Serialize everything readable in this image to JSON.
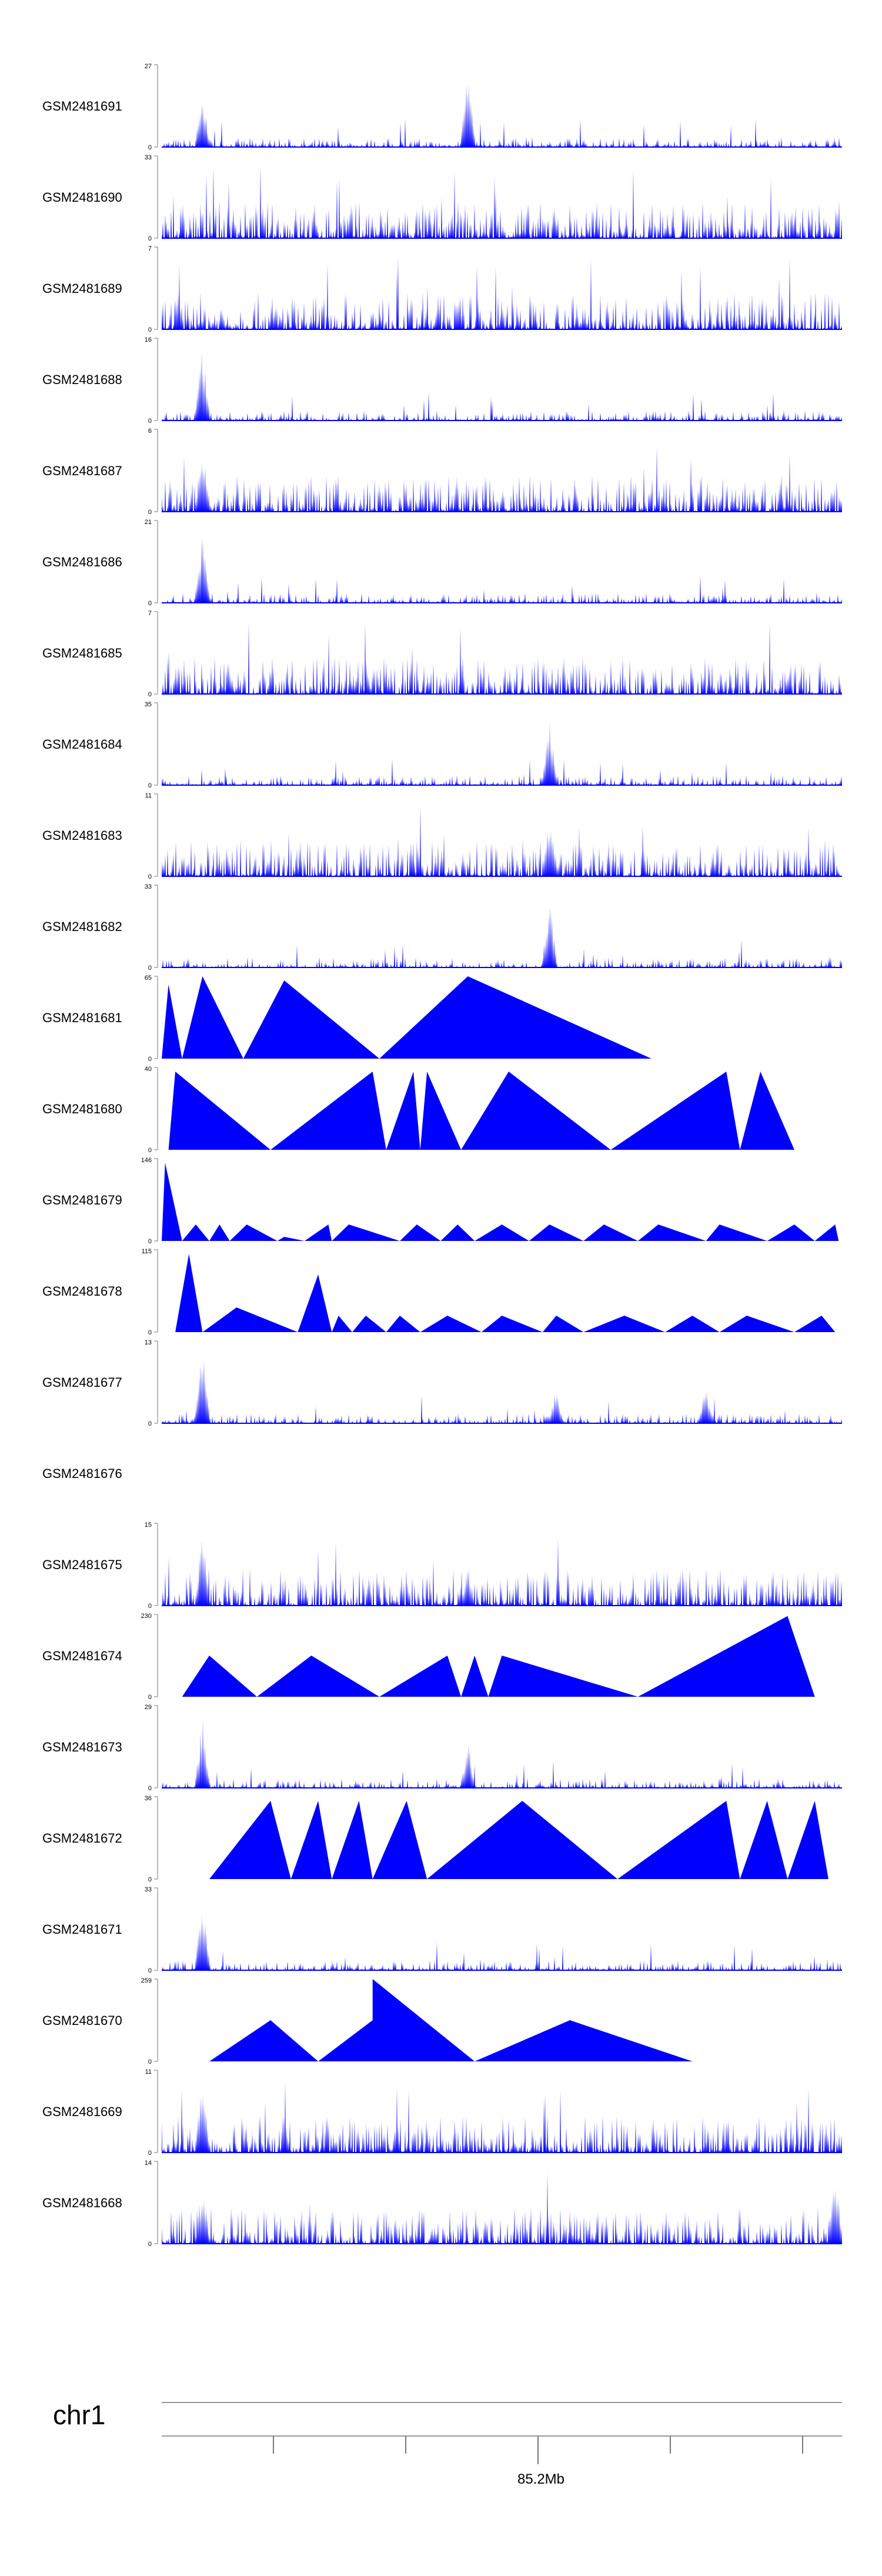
{
  "chart_data": {
    "type": "area",
    "title": "",
    "chromosome": "chr1",
    "x_axis": {
      "tick_label": "85.2Mb",
      "tick_count": 5
    },
    "tracks": [
      {
        "name": "GSM2481691",
        "ymax": "27",
        "style": "spiky",
        "peaks": [
          [
            0.06,
            0.7
          ],
          [
            0.45,
            0.95
          ]
        ]
      },
      {
        "name": "GSM2481690",
        "ymax": "33",
        "style": "dense"
      },
      {
        "name": "GSM2481689",
        "ymax": "7",
        "style": "dense"
      },
      {
        "name": "GSM2481688",
        "ymax": "16",
        "style": "spiky",
        "peaks": [
          [
            0.06,
            0.95
          ]
        ]
      },
      {
        "name": "GSM2481687",
        "ymax": "6",
        "style": "dense",
        "peaks": [
          [
            0.06,
            0.9
          ]
        ]
      },
      {
        "name": "GSM2481686",
        "ymax": "21",
        "style": "spiky",
        "peaks": [
          [
            0.06,
            0.95
          ]
        ]
      },
      {
        "name": "GSM2481685",
        "ymax": "7",
        "style": "dense"
      },
      {
        "name": "GSM2481684",
        "ymax": "35",
        "style": "spiky",
        "peaks": [
          [
            0.57,
            0.9
          ]
        ]
      },
      {
        "name": "GSM2481683",
        "ymax": "11",
        "style": "dense",
        "peaks": [
          [
            0.57,
            0.85
          ]
        ]
      },
      {
        "name": "GSM2481682",
        "ymax": "33",
        "style": "spiky",
        "peaks": [
          [
            0.57,
            0.95
          ]
        ]
      },
      {
        "name": "GSM2481681",
        "ymax": "65",
        "style": "triangle",
        "points": [
          [
            0.0,
            0
          ],
          [
            0.01,
            0.9
          ],
          [
            0.03,
            0
          ],
          [
            0.06,
            1
          ],
          [
            0.12,
            0
          ],
          [
            0.18,
            0.95
          ],
          [
            0.32,
            0
          ],
          [
            0.45,
            1
          ],
          [
            0.72,
            0
          ]
        ]
      },
      {
        "name": "GSM2481680",
        "ymax": "40",
        "style": "triangle",
        "points": [
          [
            0.01,
            0
          ],
          [
            0.02,
            0.95
          ],
          [
            0.16,
            0
          ],
          [
            0.31,
            0.95
          ],
          [
            0.33,
            0
          ],
          [
            0.37,
            0.95
          ],
          [
            0.38,
            0
          ],
          [
            0.39,
            0.95
          ],
          [
            0.44,
            0
          ],
          [
            0.51,
            0.95
          ],
          [
            0.66,
            0
          ],
          [
            0.83,
            0.95
          ],
          [
            0.85,
            0
          ],
          [
            0.88,
            0.95
          ],
          [
            0.93,
            0
          ]
        ]
      },
      {
        "name": "GSM2481679",
        "ymax": "146",
        "style": "triangle",
        "points": [
          [
            0.0,
            0
          ],
          [
            0.005,
            0.95
          ],
          [
            0.03,
            0
          ],
          [
            0.05,
            0.2
          ],
          [
            0.07,
            0
          ],
          [
            0.085,
            0.2
          ],
          [
            0.1,
            0
          ],
          [
            0.125,
            0.2
          ],
          [
            0.17,
            0
          ],
          [
            0.18,
            0.05
          ],
          [
            0.21,
            0
          ],
          [
            0.245,
            0.2
          ],
          [
            0.25,
            0
          ],
          [
            0.275,
            0.2
          ],
          [
            0.35,
            0
          ],
          [
            0.375,
            0.2
          ],
          [
            0.41,
            0
          ],
          [
            0.435,
            0.2
          ],
          [
            0.46,
            0
          ],
          [
            0.5,
            0.2
          ],
          [
            0.54,
            0
          ],
          [
            0.57,
            0.2
          ],
          [
            0.62,
            0
          ],
          [
            0.65,
            0.2
          ],
          [
            0.7,
            0
          ],
          [
            0.73,
            0.2
          ],
          [
            0.8,
            0
          ],
          [
            0.82,
            0.2
          ],
          [
            0.89,
            0
          ],
          [
            0.93,
            0.2
          ],
          [
            0.96,
            0
          ],
          [
            0.99,
            0.2
          ],
          [
            0.995,
            0
          ]
        ]
      },
      {
        "name": "GSM2481678",
        "ymax": "115",
        "style": "triangle",
        "points": [
          [
            0.02,
            0
          ],
          [
            0.04,
            0.95
          ],
          [
            0.06,
            0
          ],
          [
            0.11,
            0.3
          ],
          [
            0.2,
            0
          ],
          [
            0.23,
            0.7
          ],
          [
            0.25,
            0
          ],
          [
            0.26,
            0.2
          ],
          [
            0.28,
            0
          ],
          [
            0.3,
            0.2
          ],
          [
            0.33,
            0
          ],
          [
            0.35,
            0.2
          ],
          [
            0.38,
            0
          ],
          [
            0.42,
            0.2
          ],
          [
            0.47,
            0
          ],
          [
            0.5,
            0.2
          ],
          [
            0.56,
            0
          ],
          [
            0.58,
            0.2
          ],
          [
            0.62,
            0
          ],
          [
            0.68,
            0.2
          ],
          [
            0.74,
            0
          ],
          [
            0.78,
            0.2
          ],
          [
            0.82,
            0
          ],
          [
            0.86,
            0.2
          ],
          [
            0.93,
            0
          ],
          [
            0.97,
            0.2
          ],
          [
            0.99,
            0
          ]
        ]
      },
      {
        "name": "GSM2481677",
        "ymax": "13",
        "style": "spiky",
        "peaks": [
          [
            0.06,
            0.95
          ],
          [
            0.58,
            0.45
          ],
          [
            0.8,
            0.5
          ]
        ]
      },
      {
        "name": "GSM2481676",
        "ymax": "",
        "style": "empty"
      },
      {
        "name": "GSM2481675",
        "ymax": "15",
        "style": "dense",
        "peaks": [
          [
            0.06,
            0.95
          ],
          [
            0.45,
            0.5
          ]
        ]
      },
      {
        "name": "GSM2481674",
        "ymax": "230",
        "style": "triangle",
        "points": [
          [
            0.03,
            0
          ],
          [
            0.07,
            0.5
          ],
          [
            0.14,
            0
          ],
          [
            0.22,
            0.5
          ],
          [
            0.32,
            0
          ],
          [
            0.42,
            0.5
          ],
          [
            0.44,
            0
          ],
          [
            0.46,
            0.5
          ],
          [
            0.48,
            0
          ],
          [
            0.5,
            0.5
          ],
          [
            0.7,
            0
          ],
          [
            0.92,
            0.98
          ],
          [
            0.96,
            0
          ]
        ]
      },
      {
        "name": "GSM2481673",
        "ymax": "29",
        "style": "spiky",
        "peaks": [
          [
            0.06,
            0.9
          ],
          [
            0.45,
            0.6
          ]
        ]
      },
      {
        "name": "GSM2481672",
        "ymax": "36",
        "style": "triangle",
        "points": [
          [
            0.07,
            0
          ],
          [
            0.16,
            0.95
          ],
          [
            0.19,
            0
          ],
          [
            0.23,
            0.95
          ],
          [
            0.25,
            0
          ],
          [
            0.29,
            0.95
          ],
          [
            0.31,
            0
          ],
          [
            0.36,
            0.95
          ],
          [
            0.39,
            0
          ],
          [
            0.53,
            0.95
          ],
          [
            0.67,
            0
          ],
          [
            0.83,
            0.95
          ],
          [
            0.85,
            0
          ],
          [
            0.89,
            0.95
          ],
          [
            0.92,
            0
          ],
          [
            0.96,
            0.95
          ],
          [
            0.98,
            0
          ]
        ]
      },
      {
        "name": "GSM2481671",
        "ymax": "33",
        "style": "spiky",
        "peaks": [
          [
            0.06,
            0.95
          ]
        ]
      },
      {
        "name": "GSM2481670",
        "ymax": "259",
        "style": "triangle",
        "points": [
          [
            0.07,
            0
          ],
          [
            0.16,
            0.5
          ],
          [
            0.23,
            0
          ],
          [
            0.31,
            0.5
          ],
          [
            0.31,
            1
          ],
          [
            0.46,
            0
          ],
          [
            0.6,
            0.5
          ],
          [
            0.78,
            0
          ]
        ]
      },
      {
        "name": "GSM2481669",
        "ymax": "11",
        "style": "dense",
        "peaks": [
          [
            0.06,
            0.95
          ]
        ]
      },
      {
        "name": "GSM2481668",
        "ymax": "14",
        "style": "dense",
        "peaks": [
          [
            0.06,
            0.8
          ],
          [
            0.99,
            0.95
          ]
        ]
      }
    ]
  }
}
